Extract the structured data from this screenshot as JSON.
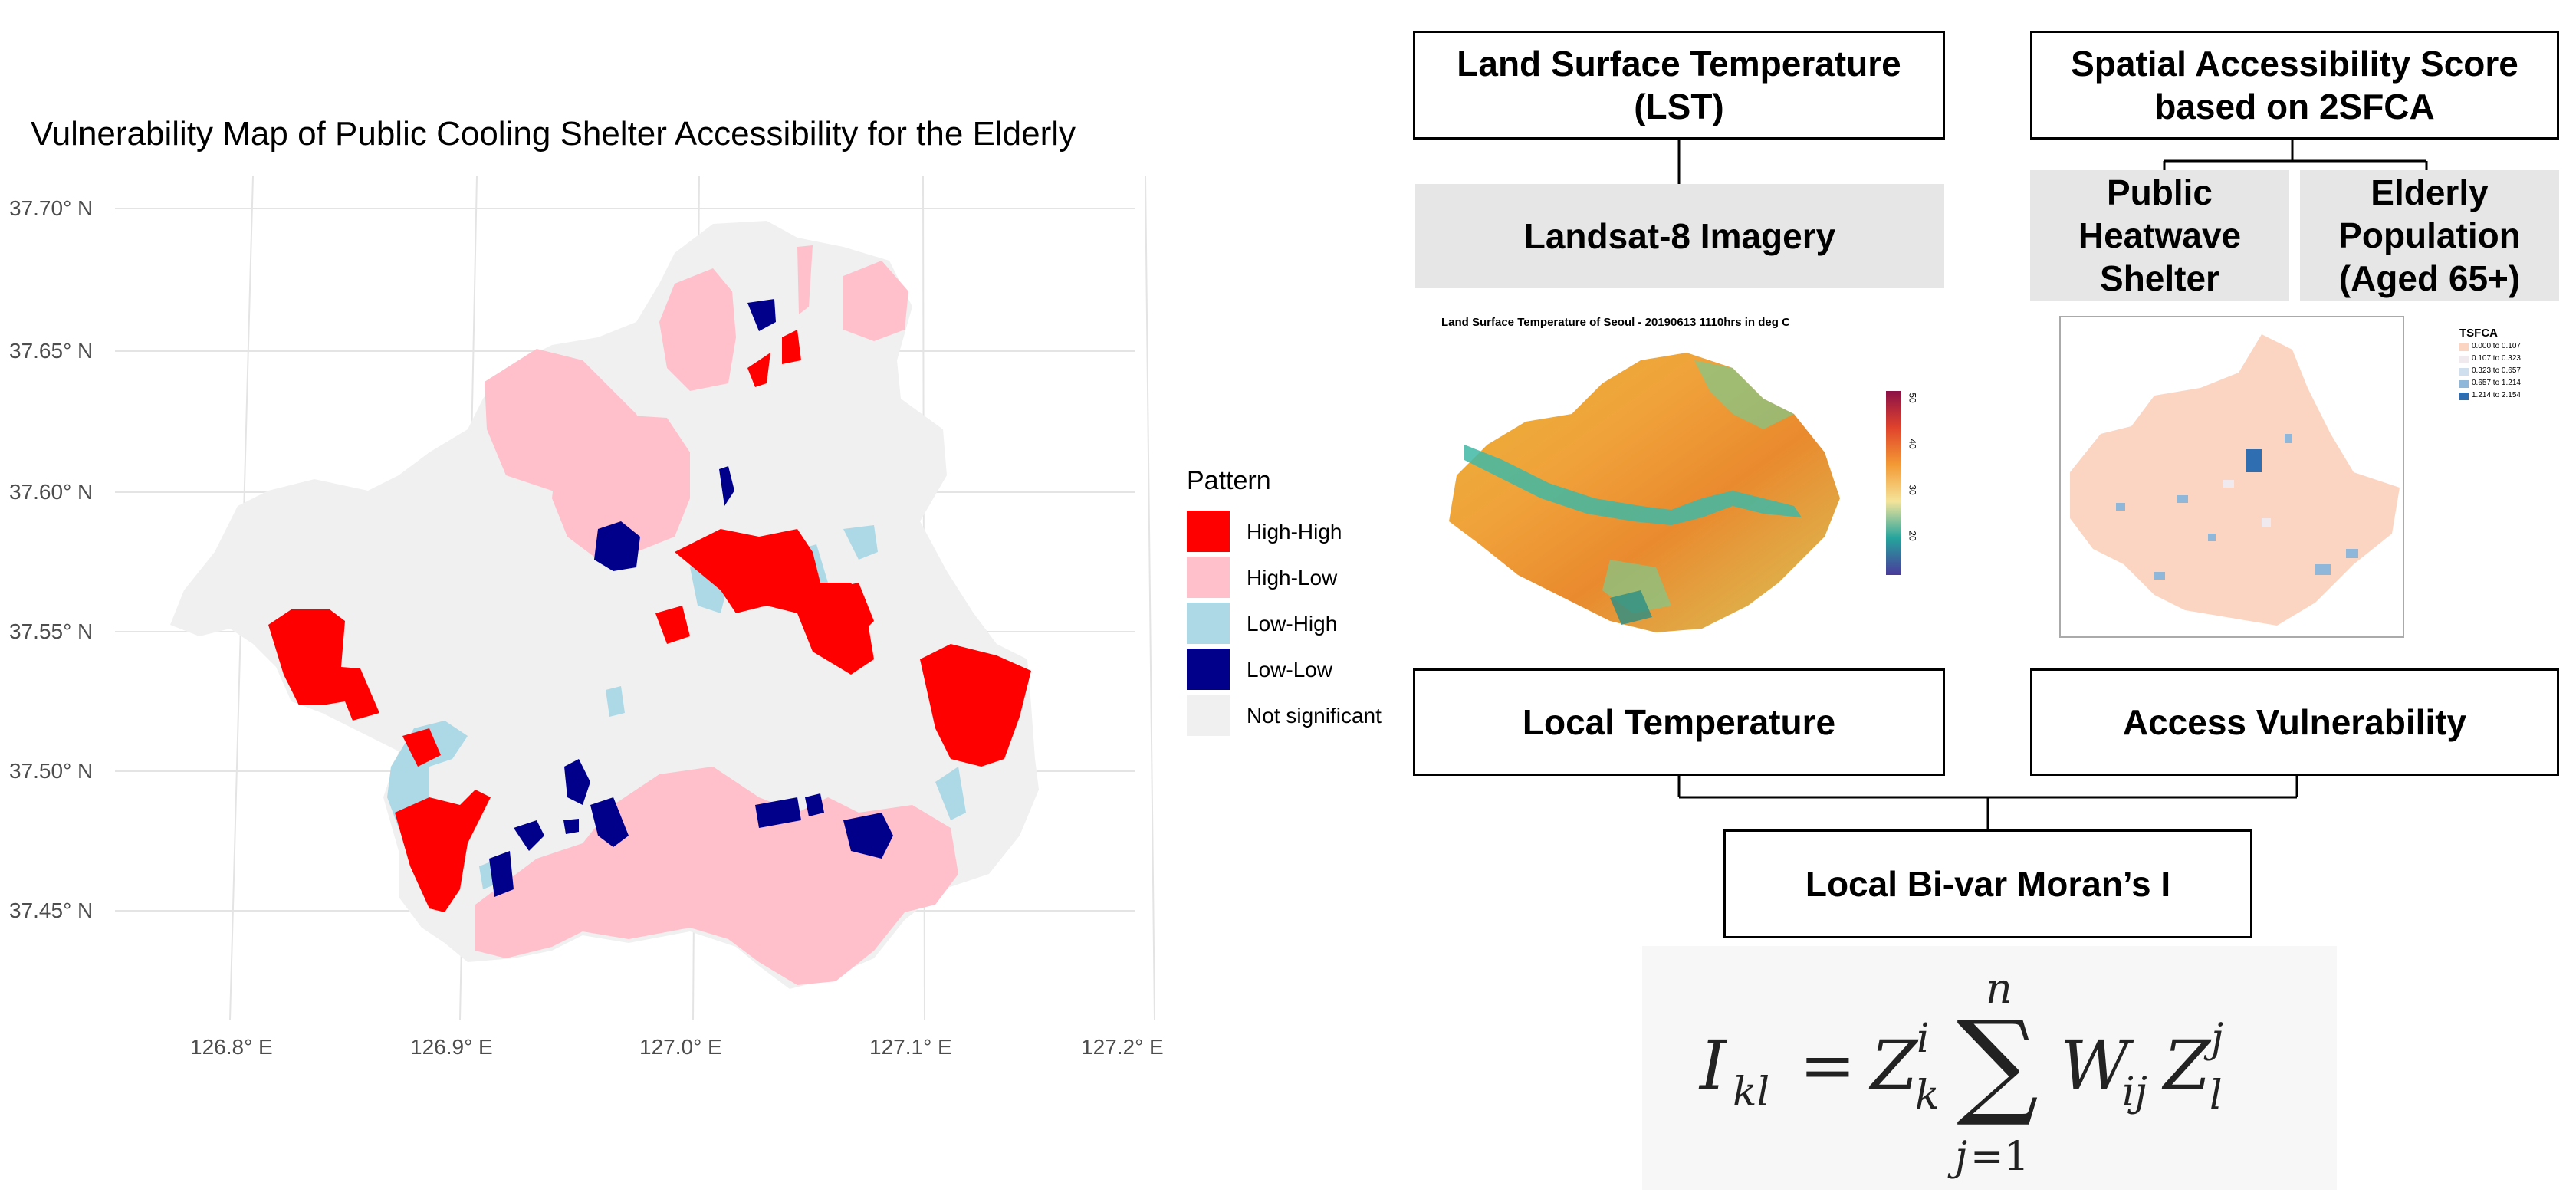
{
  "left_map": {
    "title": "Vulnerability Map of Public Cooling Shelter Accessibility for the Elderly",
    "y_ticks": [
      "37.70° N",
      "37.65° N",
      "37.60° N",
      "37.55° N",
      "37.50° N",
      "37.45° N"
    ],
    "x_ticks": [
      "126.8° E",
      "126.9° E",
      "127.0° E",
      "127.1° E",
      "127.2° E"
    ],
    "legend": {
      "title": "Pattern",
      "items": [
        {
          "label": "High-High",
          "color": "#ff0000"
        },
        {
          "label": "High-Low",
          "color": "#ffc0cb"
        },
        {
          "label": "Low-High",
          "color": "#add8e6"
        },
        {
          "label": "Low-Low",
          "color": "#00008b"
        },
        {
          "label": "Not significant",
          "color": "#f0f0f0"
        }
      ]
    }
  },
  "flow": {
    "lst_box": [
      "Land Surface Temperature",
      "(LST)"
    ],
    "landsat": "Landsat-8 Imagery",
    "lst_map_title": "Land Surface Temperature of Seoul - 20190613 1110hrs in deg C",
    "lst_scale_ticks": [
      "50",
      "40",
      "30",
      "20"
    ],
    "sa_box": [
      "Spatial Accessibility Score",
      "based on 2SFCA"
    ],
    "shelter": [
      "Public",
      "Heatwave",
      "Shelter"
    ],
    "elderly": [
      "Elderly",
      "Population",
      "(Aged 65+)"
    ],
    "tsfca_legend": {
      "title": "TSFCA",
      "items": [
        "0.000 to 0.107",
        "0.107 to 0.323",
        "0.323 to 0.657",
        "0.657 to 1.214",
        "1.214 to 2.154"
      ]
    },
    "local_temp": "Local Temperature",
    "access_vuln": "Access Vulnerability",
    "moran": "Local Bi-var Moran’s I"
  },
  "colors": {
    "high_high": "#ff0000",
    "high_low": "#ffc0cb",
    "low_high": "#add8e6",
    "low_low": "#00008b",
    "not_significant": "#f0f0f0",
    "box_grey": "#e6e6e6"
  }
}
